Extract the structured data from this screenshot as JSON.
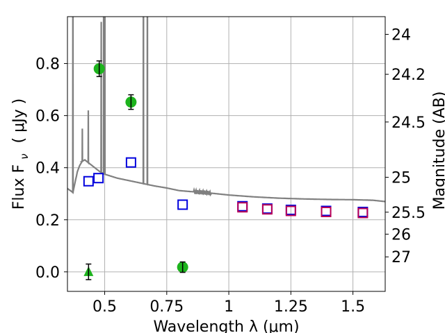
{
  "chart_data": {
    "type": "scatter",
    "xlabel": "Wavelength  λ (μm)",
    "ylabel": "Flux  F",
    "ylabel_sub": "ν",
    "ylabel_unit": "( μJy )",
    "y2label": "Magnitude (AB)",
    "xlim": [
      0.35,
      1.63
    ],
    "ylim": [
      -0.075,
      0.98
    ],
    "grid": true,
    "x_ticks": [
      0.5,
      0.75,
      1.0,
      1.25,
      1.5
    ],
    "x_tick_labels": [
      "0.5",
      "0.75",
      "1",
      "1.25",
      "1.5"
    ],
    "y_ticks": [
      0.0,
      0.2,
      0.4,
      0.6,
      0.8
    ],
    "y_tick_labels": [
      "0.0",
      "0.2",
      "0.4",
      "0.6",
      "0.8"
    ],
    "mag_ticks": [
      24,
      24.2,
      24.5,
      25,
      25.5,
      26,
      27
    ],
    "mag_tick_labels": [
      "24",
      "24.2",
      "24.5",
      "25",
      "25.5",
      "26",
      "27"
    ],
    "colors": {
      "observed": "#1db31d",
      "model_blue": "#0000dd",
      "model_red": "#bb0055",
      "sed": "#808080",
      "grid": "#b0b0b0",
      "errorbar": "#000000"
    },
    "series": [
      {
        "marker": "circle",
        "points": [
          {
            "x": 0.478,
            "y": 0.78,
            "err": 0.03
          },
          {
            "x": 0.606,
            "y": 0.652,
            "err": 0.028
          },
          {
            "x": 0.814,
            "y": 0.018,
            "err": 0.02
          }
        ]
      },
      {
        "marker": "triangle",
        "points": [
          {
            "x": 0.435,
            "y": 0.0,
            "err": 0.03
          }
        ]
      },
      {
        "marker": "open-square",
        "color_key": "model_blue",
        "points": [
          {
            "x": 0.435,
            "y": 0.348
          },
          {
            "x": 0.475,
            "y": 0.36
          },
          {
            "x": 0.606,
            "y": 0.42
          },
          {
            "x": 0.814,
            "y": 0.258
          },
          {
            "x": 1.055,
            "y": 0.252
          },
          {
            "x": 1.155,
            "y": 0.243
          },
          {
            "x": 1.25,
            "y": 0.238
          },
          {
            "x": 1.392,
            "y": 0.234
          },
          {
            "x": 1.54,
            "y": 0.23
          }
        ]
      },
      {
        "marker": "open-square",
        "color_key": "model_red",
        "points": [
          {
            "x": 1.055,
            "y": 0.248
          },
          {
            "x": 1.155,
            "y": 0.24
          },
          {
            "x": 1.25,
            "y": 0.234
          },
          {
            "x": 1.392,
            "y": 0.23
          },
          {
            "x": 1.54,
            "y": 0.226
          }
        ]
      },
      {
        "marker": "line",
        "color_key": "sed",
        "continuum": [
          [
            0.35,
            0.32
          ],
          [
            0.372,
            0.305
          ],
          [
            0.38,
            0.34
          ],
          [
            0.39,
            0.385
          ],
          [
            0.4,
            0.41
          ],
          [
            0.41,
            0.425
          ],
          [
            0.42,
            0.43
          ],
          [
            0.44,
            0.415
          ],
          [
            0.46,
            0.4
          ],
          [
            0.48,
            0.385
          ],
          [
            0.5,
            0.375
          ],
          [
            0.55,
            0.36
          ],
          [
            0.6,
            0.35
          ],
          [
            0.65,
            0.34
          ],
          [
            0.7,
            0.33
          ],
          [
            0.75,
            0.322
          ],
          [
            0.8,
            0.312
          ],
          [
            0.85,
            0.308
          ],
          [
            0.9,
            0.305
          ],
          [
            0.95,
            0.3
          ],
          [
            1.0,
            0.295
          ],
          [
            1.1,
            0.288
          ],
          [
            1.2,
            0.283
          ],
          [
            1.3,
            0.28
          ],
          [
            1.4,
            0.278
          ],
          [
            1.5,
            0.277
          ],
          [
            1.58,
            0.275
          ],
          [
            1.63,
            0.27
          ]
        ],
        "emission_lines": [
          {
            "x": 0.372,
            "peak": 1.5
          },
          {
            "x": 0.41,
            "peak": 0.55
          },
          {
            "x": 0.434,
            "peak": 0.62
          },
          {
            "x": 0.486,
            "peak": 0.96
          },
          {
            "x": 0.496,
            "peak": 1.5
          },
          {
            "x": 0.5007,
            "peak": 1.5
          },
          {
            "x": 0.656,
            "peak": 1.5
          },
          {
            "x": 0.672,
            "peak": 1.5
          }
        ]
      }
    ]
  }
}
